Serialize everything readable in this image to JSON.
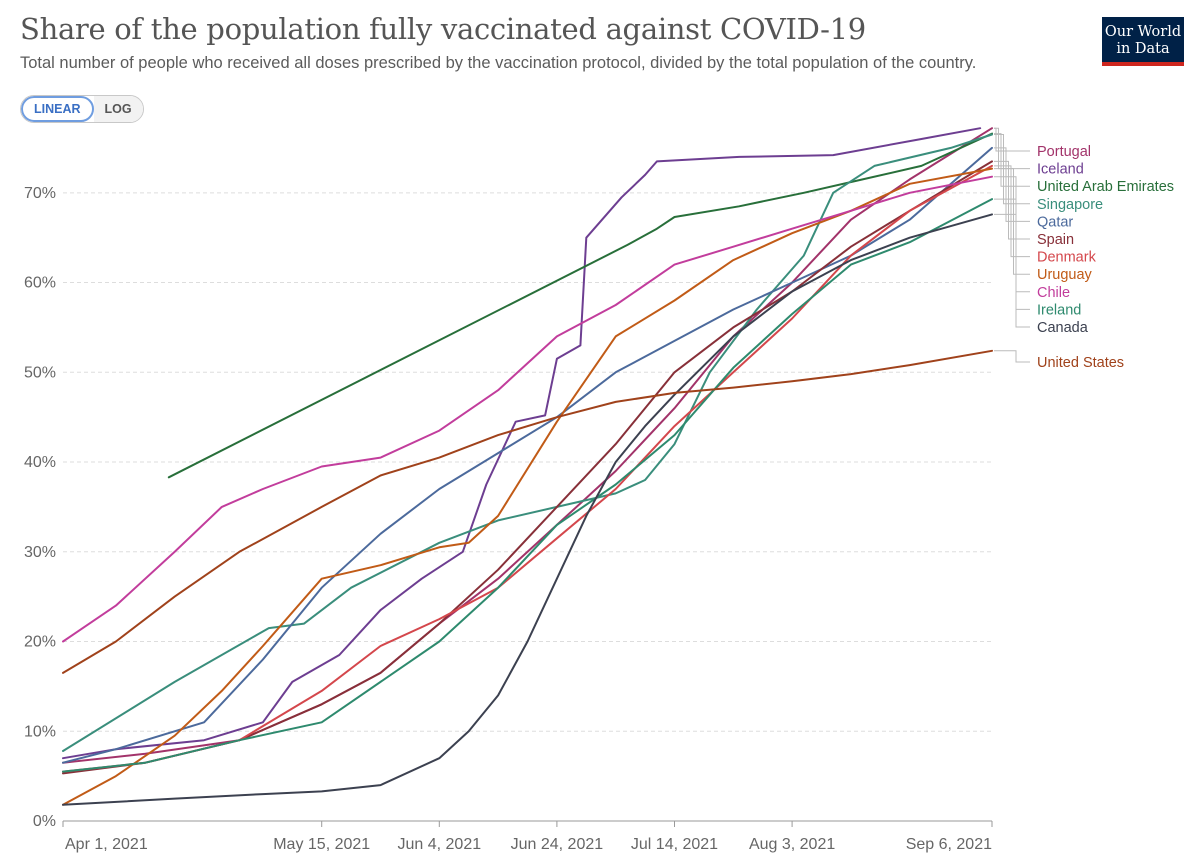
{
  "header": {
    "title": "Share of the population fully vaccinated against COVID-19",
    "subtitle": "Total number of people who received all doses prescribed by the vaccination protocol, divided by the total population of the country.",
    "logo_line1": "Our World",
    "logo_line2": "in Data"
  },
  "controls": {
    "linear_label": "LINEAR",
    "log_label": "LOG",
    "selected": "linear"
  },
  "chart_data": {
    "type": "line",
    "title": "Share of the population fully vaccinated against COVID-19",
    "x_range": [
      "2021-04-01",
      "2021-09-06"
    ],
    "ylim": [
      0,
      77
    ],
    "x_ticks": [
      {
        "label": "Apr 1, 2021",
        "date": "2021-04-01"
      },
      {
        "label": "May 15, 2021",
        "date": "2021-05-15"
      },
      {
        "label": "Jun 4, 2021",
        "date": "2021-06-04"
      },
      {
        "label": "Jun 24, 2021",
        "date": "2021-06-24"
      },
      {
        "label": "Jul 14, 2021",
        "date": "2021-07-14"
      },
      {
        "label": "Aug 3, 2021",
        "date": "2021-08-03"
      },
      {
        "label": "Sep 6, 2021",
        "date": "2021-09-06"
      }
    ],
    "y_ticks": [
      {
        "label": "0%",
        "value": 0
      },
      {
        "label": "10%",
        "value": 10
      },
      {
        "label": "20%",
        "value": 20
      },
      {
        "label": "30%",
        "value": 30
      },
      {
        "label": "40%",
        "value": 40
      },
      {
        "label": "50%",
        "value": 50
      },
      {
        "label": "60%",
        "value": 60
      },
      {
        "label": "70%",
        "value": 70
      }
    ],
    "grid": true,
    "legend_position": "right",
    "series": [
      {
        "name": "Portugal",
        "color": "#a2336a",
        "points": [
          [
            "2021-04-01",
            6.5
          ],
          [
            "2021-04-15",
            7.5
          ],
          [
            "2021-05-01",
            9.0
          ],
          [
            "2021-05-15",
            13.0
          ],
          [
            "2021-05-25",
            16.5
          ],
          [
            "2021-06-04",
            22.0
          ],
          [
            "2021-06-14",
            27.0
          ],
          [
            "2021-06-24",
            33.0
          ],
          [
            "2021-07-04",
            39.0
          ],
          [
            "2021-07-14",
            46.0
          ],
          [
            "2021-07-24",
            54.0
          ],
          [
            "2021-08-03",
            60.0
          ],
          [
            "2021-08-13",
            67.0
          ],
          [
            "2021-08-23",
            71.5
          ],
          [
            "2021-09-06",
            77.2
          ]
        ]
      },
      {
        "name": "Iceland",
        "color": "#6d3e91",
        "points": [
          [
            "2021-04-01",
            7.0
          ],
          [
            "2021-04-10",
            8.0
          ],
          [
            "2021-04-25",
            9.0
          ],
          [
            "2021-05-05",
            11.0
          ],
          [
            "2021-05-10",
            15.5
          ],
          [
            "2021-05-18",
            18.5
          ],
          [
            "2021-05-25",
            23.5
          ],
          [
            "2021-06-01",
            27.0
          ],
          [
            "2021-06-08",
            30.0
          ],
          [
            "2021-06-12",
            37.5
          ],
          [
            "2021-06-17",
            44.5
          ],
          [
            "2021-06-22",
            45.2
          ],
          [
            "2021-06-24",
            51.5
          ],
          [
            "2021-06-28",
            53.0
          ],
          [
            "2021-06-29",
            65.0
          ],
          [
            "2021-07-05",
            69.5
          ],
          [
            "2021-07-09",
            72.0
          ],
          [
            "2021-07-11",
            73.5
          ],
          [
            "2021-07-25",
            74.0
          ],
          [
            "2021-08-10",
            74.2
          ],
          [
            "2021-08-25",
            76.0
          ],
          [
            "2021-09-04",
            77.2
          ]
        ]
      },
      {
        "name": "United Arab Emirates",
        "color": "#286f3a",
        "points": [
          [
            "2021-04-19",
            38.3
          ],
          [
            "2021-07-06",
            64.2
          ],
          [
            "2021-07-11",
            66.0
          ],
          [
            "2021-07-14",
            67.3
          ],
          [
            "2021-07-25",
            68.5
          ],
          [
            "2021-08-05",
            70.0
          ],
          [
            "2021-08-15",
            71.5
          ],
          [
            "2021-08-25",
            73.0
          ],
          [
            "2021-09-06",
            76.6
          ]
        ]
      },
      {
        "name": "Singapore",
        "color": "#3a8e7c",
        "points": [
          [
            "2021-04-01",
            7.8
          ],
          [
            "2021-04-20",
            15.5
          ],
          [
            "2021-05-06",
            21.5
          ],
          [
            "2021-05-12",
            22.0
          ],
          [
            "2021-05-20",
            26.0
          ],
          [
            "2021-06-04",
            31.0
          ],
          [
            "2021-06-14",
            33.5
          ],
          [
            "2021-06-24",
            35.0
          ],
          [
            "2021-07-04",
            36.5
          ],
          [
            "2021-07-09",
            38.0
          ],
          [
            "2021-07-14",
            42.0
          ],
          [
            "2021-07-20",
            50.0
          ],
          [
            "2021-07-28",
            57.0
          ],
          [
            "2021-08-05",
            63.0
          ],
          [
            "2021-08-10",
            70.0
          ],
          [
            "2021-08-17",
            73.0
          ],
          [
            "2021-08-30",
            75.0
          ],
          [
            "2021-09-06",
            76.5
          ]
        ]
      },
      {
        "name": "Qatar",
        "color": "#4c6a9c",
        "points": [
          [
            "2021-04-01",
            6.5
          ],
          [
            "2021-04-10",
            8.0
          ],
          [
            "2021-04-25",
            11.0
          ],
          [
            "2021-05-05",
            18.0
          ],
          [
            "2021-05-15",
            26.0
          ],
          [
            "2021-05-25",
            32.0
          ],
          [
            "2021-06-04",
            37.0
          ],
          [
            "2021-06-14",
            41.0
          ],
          [
            "2021-06-24",
            45.0
          ],
          [
            "2021-07-04",
            50.0
          ],
          [
            "2021-07-14",
            53.5
          ],
          [
            "2021-07-24",
            57.0
          ],
          [
            "2021-08-03",
            60.0
          ],
          [
            "2021-08-13",
            63.0
          ],
          [
            "2021-08-23",
            67.0
          ],
          [
            "2021-09-06",
            75.0
          ]
        ]
      },
      {
        "name": "Spain",
        "color": "#883039",
        "points": [
          [
            "2021-04-01",
            5.3
          ],
          [
            "2021-04-15",
            6.5
          ],
          [
            "2021-05-01",
            9.0
          ],
          [
            "2021-05-15",
            13.0
          ],
          [
            "2021-05-25",
            16.5
          ],
          [
            "2021-06-04",
            22.0
          ],
          [
            "2021-06-14",
            28.0
          ],
          [
            "2021-06-24",
            35.0
          ],
          [
            "2021-07-04",
            42.0
          ],
          [
            "2021-07-14",
            50.0
          ],
          [
            "2021-07-24",
            55.0
          ],
          [
            "2021-08-03",
            59.0
          ],
          [
            "2021-08-13",
            64.0
          ],
          [
            "2021-08-23",
            68.0
          ],
          [
            "2021-09-06",
            73.5
          ]
        ]
      },
      {
        "name": "Denmark",
        "color": "#d4474c",
        "points": [
          [
            "2021-04-01",
            5.5
          ],
          [
            "2021-04-15",
            6.5
          ],
          [
            "2021-05-01",
            9.0
          ],
          [
            "2021-05-15",
            14.5
          ],
          [
            "2021-05-25",
            19.5
          ],
          [
            "2021-06-04",
            22.5
          ],
          [
            "2021-06-14",
            26.0
          ],
          [
            "2021-06-24",
            31.5
          ],
          [
            "2021-07-04",
            37.0
          ],
          [
            "2021-07-14",
            44.0
          ],
          [
            "2021-07-24",
            50.0
          ],
          [
            "2021-08-03",
            56.0
          ],
          [
            "2021-08-13",
            63.0
          ],
          [
            "2021-08-23",
            68.0
          ],
          [
            "2021-09-06",
            73.0
          ]
        ]
      },
      {
        "name": "Uruguay",
        "color": "#c15b17",
        "points": [
          [
            "2021-04-01",
            1.8
          ],
          [
            "2021-04-10",
            5.0
          ],
          [
            "2021-04-20",
            9.5
          ],
          [
            "2021-04-28",
            14.5
          ],
          [
            "2021-05-05",
            19.5
          ],
          [
            "2021-05-15",
            27.0
          ],
          [
            "2021-05-25",
            28.5
          ],
          [
            "2021-06-04",
            30.5
          ],
          [
            "2021-06-09",
            31.0
          ],
          [
            "2021-06-14",
            34.0
          ],
          [
            "2021-06-24",
            44.5
          ],
          [
            "2021-07-04",
            54.0
          ],
          [
            "2021-07-14",
            58.0
          ],
          [
            "2021-07-24",
            62.5
          ],
          [
            "2021-08-03",
            65.5
          ],
          [
            "2021-08-13",
            68.0
          ],
          [
            "2021-08-23",
            71.0
          ],
          [
            "2021-09-06",
            72.7
          ]
        ]
      },
      {
        "name": "Chile",
        "color": "#c23d9c",
        "points": [
          [
            "2021-04-01",
            20.0
          ],
          [
            "2021-04-10",
            24.0
          ],
          [
            "2021-04-20",
            30.0
          ],
          [
            "2021-04-28",
            35.0
          ],
          [
            "2021-05-05",
            37.0
          ],
          [
            "2021-05-15",
            39.5
          ],
          [
            "2021-05-25",
            40.5
          ],
          [
            "2021-06-04",
            43.5
          ],
          [
            "2021-06-14",
            48.0
          ],
          [
            "2021-06-24",
            54.0
          ],
          [
            "2021-07-04",
            57.5
          ],
          [
            "2021-07-14",
            62.0
          ],
          [
            "2021-07-24",
            64.0
          ],
          [
            "2021-08-03",
            66.0
          ],
          [
            "2021-08-13",
            68.0
          ],
          [
            "2021-08-23",
            70.0
          ],
          [
            "2021-09-06",
            71.8
          ]
        ]
      },
      {
        "name": "Ireland",
        "color": "#2e8a6e",
        "points": [
          [
            "2021-04-01",
            5.5
          ],
          [
            "2021-04-15",
            6.5
          ],
          [
            "2021-05-01",
            9.0
          ],
          [
            "2021-05-15",
            11.0
          ],
          [
            "2021-06-04",
            20.0
          ],
          [
            "2021-06-14",
            26.0
          ],
          [
            "2021-06-24",
            33.0
          ],
          [
            "2021-07-04",
            37.5
          ],
          [
            "2021-07-14",
            43.0
          ],
          [
            "2021-07-24",
            50.5
          ],
          [
            "2021-08-03",
            56.5
          ],
          [
            "2021-08-13",
            62.0
          ],
          [
            "2021-08-23",
            64.5
          ],
          [
            "2021-09-06",
            69.3
          ]
        ]
      },
      {
        "name": "Canada",
        "color": "#3c4150",
        "points": [
          [
            "2021-04-01",
            1.8
          ],
          [
            "2021-04-20",
            2.5
          ],
          [
            "2021-05-05",
            3.0
          ],
          [
            "2021-05-15",
            3.3
          ],
          [
            "2021-05-25",
            4.0
          ],
          [
            "2021-06-04",
            7.0
          ],
          [
            "2021-06-09",
            10.0
          ],
          [
            "2021-06-14",
            14.0
          ],
          [
            "2021-06-19",
            20.0
          ],
          [
            "2021-06-24",
            27.0
          ],
          [
            "2021-06-29",
            34.0
          ],
          [
            "2021-07-04",
            40.0
          ],
          [
            "2021-07-09",
            44.0
          ],
          [
            "2021-07-14",
            47.5
          ],
          [
            "2021-07-24",
            54.0
          ],
          [
            "2021-08-03",
            59.0
          ],
          [
            "2021-08-13",
            62.5
          ],
          [
            "2021-08-23",
            65.0
          ],
          [
            "2021-09-06",
            67.6
          ]
        ]
      },
      {
        "name": "United States",
        "color": "#a0421b",
        "points": [
          [
            "2021-04-01",
            16.5
          ],
          [
            "2021-04-10",
            20.0
          ],
          [
            "2021-04-20",
            25.0
          ],
          [
            "2021-05-01",
            30.0
          ],
          [
            "2021-05-15",
            35.0
          ],
          [
            "2021-05-25",
            38.5
          ],
          [
            "2021-06-04",
            40.5
          ],
          [
            "2021-06-14",
            43.0
          ],
          [
            "2021-06-24",
            45.0
          ],
          [
            "2021-07-04",
            46.7
          ],
          [
            "2021-07-14",
            47.7
          ],
          [
            "2021-07-24",
            48.3
          ],
          [
            "2021-08-03",
            49.0
          ],
          [
            "2021-08-13",
            49.8
          ],
          [
            "2021-08-23",
            50.8
          ],
          [
            "2021-09-06",
            52.4
          ]
        ]
      }
    ]
  }
}
